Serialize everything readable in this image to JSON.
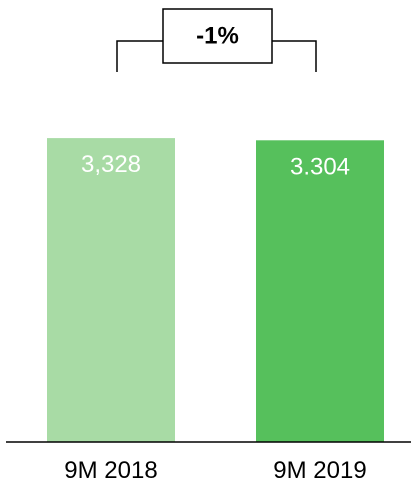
{
  "chart_data": {
    "type": "bar",
    "categories": [
      "9M 2018",
      "9M 2019"
    ],
    "values": [
      3328,
      3304
    ],
    "value_labels": [
      "3,328",
      "3.304"
    ],
    "ylim": [
      0,
      3800
    ],
    "grid": false,
    "legend": "none",
    "annotation": {
      "text": "-1%"
    },
    "colors": {
      "bar_2018": "#a8dba5",
      "bar_2019": "#56c05c",
      "axis": "#000000",
      "bracket": "#000000"
    }
  }
}
